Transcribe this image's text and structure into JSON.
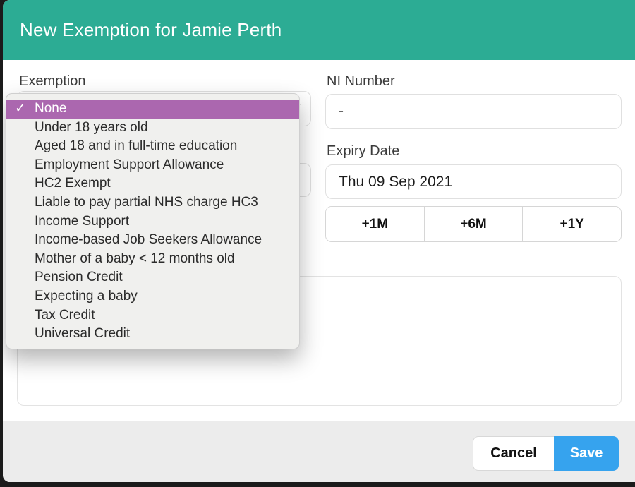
{
  "modal": {
    "title": "New Exemption for Jamie Perth",
    "exemption": {
      "label": "Exemption"
    },
    "ni_number": {
      "label": "NI Number",
      "value": "-"
    },
    "expiry_date": {
      "label": "Expiry Date",
      "value": "Thu 09 Sep 2021"
    },
    "date_shortcuts": {
      "plus_1m": "+1M",
      "plus_6m": "+6M",
      "plus_1y": "+1Y"
    },
    "dropdown": {
      "check_glyph": "✓",
      "selected_label": "None",
      "options": [
        "None",
        "Under 18 years old",
        "Aged 18 and in full-time education",
        "Employment Support Allowance",
        "HC2 Exempt",
        "Liable to pay partial NHS charge HC3",
        "Income Support",
        "Income-based Job Seekers Allowance",
        "Mother of a baby < 12 months old",
        "Pension Credit",
        "Expecting a baby",
        "Tax Credit",
        "Universal Credit"
      ]
    },
    "notes_value": "",
    "footer": {
      "cancel": "Cancel",
      "save": "Save"
    }
  },
  "icons": {
    "select_indicator": "✔"
  },
  "colors": {
    "header_teal": "#2cac94",
    "selected_purple": "#ab67af",
    "save_blue": "#36a3ee",
    "footer_gray": "#ececec"
  }
}
